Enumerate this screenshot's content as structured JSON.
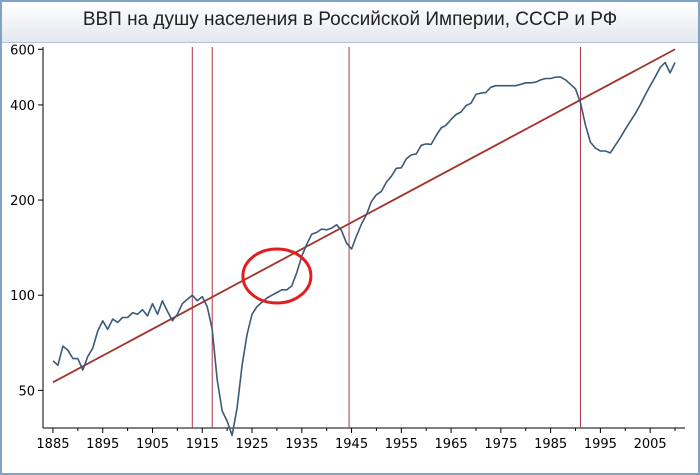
{
  "header": {
    "title": "ВВП на душу населения в Российской Империи, СССР и РФ"
  },
  "colors": {
    "gdp_line": "#3a5a78",
    "trend_line": "#a2342a",
    "event_lines": "#b0364a",
    "highlight_circle": "#e02020",
    "frame_border": "#7fa3c8"
  },
  "chart_data": {
    "type": "line",
    "title": "ВВП на душу населения в Российской Империи, СССР и РФ",
    "xlabel": "",
    "ylabel": "",
    "y_scale": "log",
    "xlim": [
      1883,
      2012
    ],
    "ylim": [
      38,
      610
    ],
    "x_ticks": [
      1885,
      1895,
      1905,
      1915,
      1925,
      1935,
      1945,
      1955,
      1965,
      1975,
      1985,
      1995,
      2005
    ],
    "y_ticks": [
      50,
      100,
      200,
      400,
      600
    ],
    "grid": false,
    "vertical_markers": [
      1913,
      1917,
      1944.5,
      1991
    ],
    "highlight_circle": {
      "x": 1930,
      "y": 115,
      "description": "red ellipse"
    },
    "trend_line": {
      "x": [
        1885,
        2010
      ],
      "y": [
        53,
        600
      ]
    },
    "series": [
      {
        "x": [
          1885,
          1886,
          1887,
          1888,
          1889,
          1890,
          1891,
          1892,
          1893,
          1894,
          1895,
          1896,
          1897,
          1898,
          1899,
          1900,
          1901,
          1902,
          1903,
          1904,
          1905,
          1906,
          1907,
          1908,
          1909,
          1910,
          1911,
          1912,
          1913,
          1914,
          1915,
          1916,
          1917,
          1918,
          1919,
          1920,
          1921,
          1922,
          1923,
          1924,
          1925,
          1926,
          1927,
          1928,
          1929,
          1930,
          1931,
          1932,
          1933,
          1934,
          1935,
          1936,
          1937,
          1938,
          1939,
          1940,
          1941,
          1942,
          1943,
          1944,
          1945,
          1946,
          1947,
          1948,
          1949,
          1950,
          1951,
          1952,
          1953,
          1954,
          1955,
          1956,
          1957,
          1958,
          1959,
          1960,
          1961,
          1962,
          1963,
          1964,
          1965,
          1966,
          1967,
          1968,
          1969,
          1970,
          1971,
          1972,
          1973,
          1974,
          1975,
          1976,
          1977,
          1978,
          1979,
          1980,
          1981,
          1982,
          1983,
          1984,
          1985,
          1986,
          1987,
          1988,
          1989,
          1990,
          1991,
          1992,
          1993,
          1994,
          1995,
          1996,
          1997,
          1998,
          1999,
          2000,
          2001,
          2002,
          2003,
          2004,
          2005,
          2006,
          2007,
          2008,
          2009,
          2010
        ],
        "values": [
          62,
          60,
          69,
          67,
          63,
          63,
          58,
          64,
          68,
          77,
          83,
          78,
          84,
          82,
          85,
          85,
          88,
          87,
          90,
          86,
          94,
          87,
          96,
          89,
          83,
          87,
          94,
          97,
          100,
          96,
          99,
          92,
          78,
          54,
          43,
          40,
          36,
          44,
          60,
          75,
          87,
          92,
          95,
          98,
          100,
          102,
          104,
          104,
          107,
          118,
          133,
          145,
          156,
          158,
          162,
          161,
          163,
          167,
          160,
          146,
          140,
          154,
          168,
          180,
          198,
          208,
          213,
          228,
          238,
          252,
          253,
          270,
          278,
          280,
          298,
          301,
          300,
          320,
          338,
          345,
          360,
          373,
          380,
          398,
          405,
          432,
          436,
          438,
          455,
          460,
          460,
          460,
          460,
          460,
          465,
          470,
          470,
          472,
          480,
          485,
          485,
          490,
          490,
          480,
          465,
          450,
          406,
          345,
          305,
          292,
          286,
          286,
          282,
          298,
          315,
          335,
          355,
          375,
          400,
          430,
          460,
          490,
          525,
          545,
          505,
          545
        ]
      }
    ]
  }
}
